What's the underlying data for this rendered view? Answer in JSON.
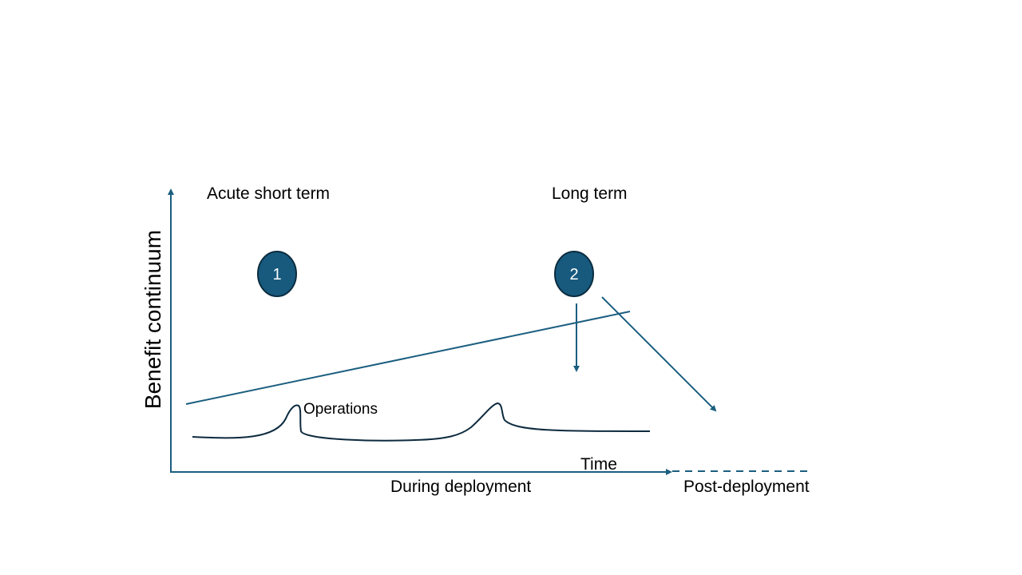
{
  "diagram": {
    "y_axis_label": "Benefit continuum",
    "x_axis_label": "Time",
    "phase_short": "Acute short term",
    "phase_long": "Long term",
    "period_during": "During deployment",
    "period_post": "Post-deployment",
    "curve_label": "Operations",
    "markers": [
      {
        "label": "1"
      },
      {
        "label": "2"
      }
    ],
    "colors": {
      "axis": "#1b5e80",
      "marker_fill": "#175a7e",
      "marker_stroke": "#0b2d40",
      "curve": "#0d2a3e",
      "text": "#000000"
    }
  }
}
